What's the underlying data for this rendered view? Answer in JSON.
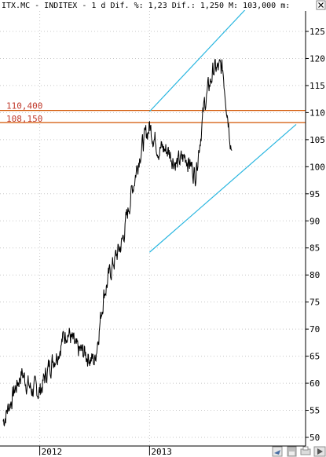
{
  "header": {
    "text": "ITX.MC - INDITEX - 1 d Dif. %: 1,23 Dif.: 1,250 M: 103,000 m:"
  },
  "chart_data": {
    "type": "line",
    "symbol": "ITX.MC",
    "name": "INDITEX",
    "timeframe": "1 d",
    "ylim": [
      50,
      125
    ],
    "yticks": [
      "125",
      "120",
      "115",
      "110",
      "105",
      "100",
      "95",
      "90",
      "85",
      "80",
      "75",
      "70",
      "65",
      "60",
      "55",
      "50"
    ],
    "xticks": [
      "2012",
      "2013"
    ],
    "levels": [
      {
        "label": "110,400",
        "value": 110.4,
        "color": "#d35400"
      },
      {
        "label": "108,150",
        "value": 108.15,
        "color": "#d35400"
      }
    ],
    "trendlines": [
      {
        "color": "#29b6e0",
        "points": [
          [
            "2013-01",
            110.2
          ],
          [
            "2013-09",
            124.6
          ]
        ]
      },
      {
        "color": "#29b6e0",
        "points": [
          [
            "2013-01",
            84.2
          ],
          [
            "2013-09",
            96.0
          ]
        ]
      }
    ],
    "series": [
      {
        "values": [
          [
            "2011-09",
            53.0
          ],
          [
            "2011-10",
            57.5
          ],
          [
            "2011-11",
            62.0
          ],
          [
            "2011-12",
            59.0
          ],
          [
            "2012-01",
            58.5
          ],
          [
            "2012-02",
            63.0
          ],
          [
            "2012-03",
            66.0
          ],
          [
            "2012-04",
            70.0
          ],
          [
            "2012-05",
            66.0
          ],
          [
            "2012-06",
            65.5
          ],
          [
            "2012-07",
            64.0
          ],
          [
            "2012-08",
            76.5
          ],
          [
            "2012-09",
            82.0
          ],
          [
            "2012-10",
            86.0
          ],
          [
            "2012-11",
            95.0
          ],
          [
            "2012-12",
            103.0
          ],
          [
            "2013-01",
            107.5
          ],
          [
            "2013-02",
            103.5
          ],
          [
            "2013-03",
            103.0
          ],
          [
            "2013-04",
            100.5
          ],
          [
            "2013-05",
            102.0
          ],
          [
            "2013-06",
            98.5
          ],
          [
            "2013-07",
            111.5
          ],
          [
            "2013-08",
            118.0
          ],
          [
            "2013-09",
            118.0
          ],
          [
            "2013-10",
            103.0
          ]
        ]
      }
    ]
  },
  "colors": {
    "price": "#000000",
    "level": "#d35400",
    "trend": "#29b6e0",
    "grid": "#c8c8c8"
  }
}
